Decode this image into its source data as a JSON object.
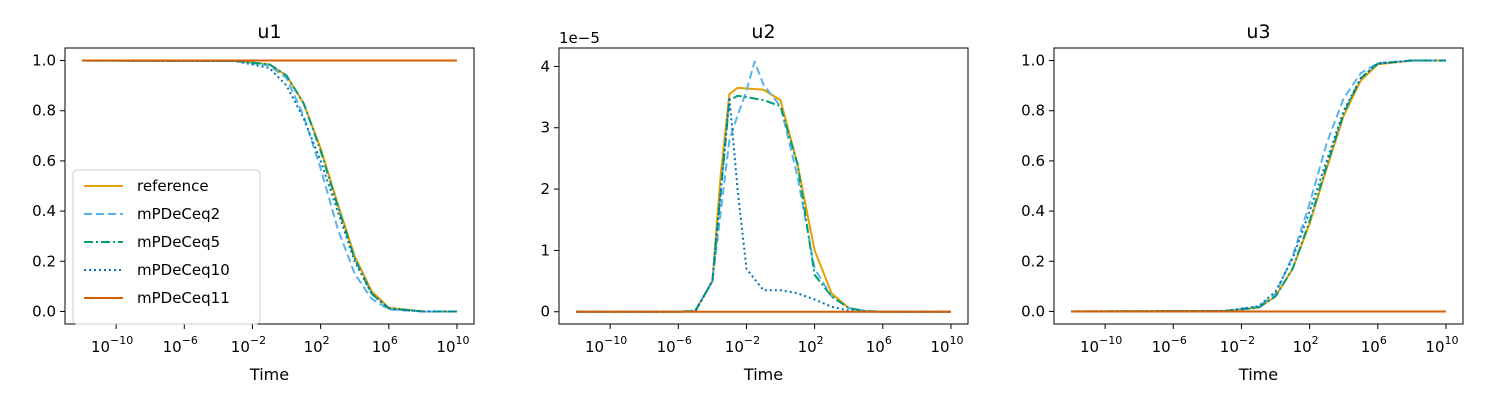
{
  "chart_data": [
    {
      "type": "line",
      "title": "u1",
      "xlabel": "Time",
      "ylabel": "",
      "xscale": "log",
      "xlim": [
        1e-13,
        100000000000.0
      ],
      "ylim": [
        -0.05,
        1.05
      ],
      "xticks": [
        1e-10,
        1e-06,
        0.01,
        100.0,
        1000000.0,
        10000000000.0
      ],
      "xtick_labels": [
        {
          "base": "10",
          "exp": "−10"
        },
        {
          "base": "10",
          "exp": "−6"
        },
        {
          "base": "10",
          "exp": "−2"
        },
        {
          "base": "10",
          "exp": "2"
        },
        {
          "base": "10",
          "exp": "6"
        },
        {
          "base": "10",
          "exp": "10"
        }
      ],
      "yticks": [
        0.0,
        0.2,
        0.4,
        0.6,
        0.8,
        1.0
      ],
      "ytick_labels": [
        "0.0",
        "0.2",
        "0.4",
        "0.6",
        "0.8",
        "1.0"
      ],
      "y_offset_label": "",
      "grid": false,
      "legend_position": "lower-left",
      "series": [
        {
          "name": "reference",
          "color": "#E69F00",
          "style": "solid",
          "x": [
            1e-12,
            0.001,
            0.1,
            1,
            10,
            100,
            1000,
            10000.0,
            100000.0,
            1000000.0,
            100000000.0,
            10000000000.0
          ],
          "y": [
            1.0,
            0.998,
            0.985,
            0.94,
            0.83,
            0.65,
            0.43,
            0.22,
            0.08,
            0.015,
            0.0,
            0.0
          ]
        },
        {
          "name": "mPDeCeq2",
          "color": "#56B4E9",
          "style": "dashed",
          "x": [
            1e-12,
            0.001,
            0.1,
            1,
            10,
            100,
            1000,
            10000.0,
            100000.0,
            1000000.0,
            100000000.0,
            10000000000.0
          ],
          "y": [
            1.0,
            0.998,
            0.98,
            0.93,
            0.78,
            0.57,
            0.33,
            0.15,
            0.05,
            0.008,
            0.0,
            0.0
          ]
        },
        {
          "name": "mPDeCeq5",
          "color": "#009E73",
          "style": "dashdot",
          "x": [
            1e-12,
            0.001,
            0.1,
            1,
            10,
            100,
            1000,
            10000.0,
            100000.0,
            1000000.0,
            100000000.0,
            10000000000.0
          ],
          "y": [
            1.0,
            0.998,
            0.985,
            0.94,
            0.83,
            0.64,
            0.42,
            0.21,
            0.07,
            0.012,
            0.0,
            0.0
          ]
        },
        {
          "name": "mPDeCeq10",
          "color": "#0072B2",
          "style": "dotted",
          "x": [
            1e-12,
            0.001,
            0.1,
            1,
            10,
            100,
            1000,
            10000.0,
            100000.0,
            1000000.0,
            100000000.0,
            10000000000.0
          ],
          "y": [
            1.0,
            0.998,
            0.97,
            0.9,
            0.77,
            0.6,
            0.4,
            0.2,
            0.07,
            0.012,
            0.0,
            0.0
          ]
        },
        {
          "name": "mPDeCeq11",
          "color": "#D55E00",
          "style": "solid",
          "x": [
            1e-12,
            10000000000.0
          ],
          "y": [
            1.0,
            1.0
          ]
        }
      ]
    },
    {
      "type": "line",
      "title": "u2",
      "xlabel": "Time",
      "ylabel": "",
      "xscale": "log",
      "xlim": [
        1e-13,
        100000000000.0
      ],
      "ylim": [
        -2e-06,
        4.3e-05
      ],
      "xticks": [
        1e-10,
        1e-06,
        0.01,
        100.0,
        1000000.0,
        10000000000.0
      ],
      "xtick_labels": [
        {
          "base": "10",
          "exp": "−10"
        },
        {
          "base": "10",
          "exp": "−6"
        },
        {
          "base": "10",
          "exp": "−2"
        },
        {
          "base": "10",
          "exp": "2"
        },
        {
          "base": "10",
          "exp": "6"
        },
        {
          "base": "10",
          "exp": "10"
        }
      ],
      "yticks": [
        0,
        1e-05,
        2e-05,
        3e-05,
        4e-05
      ],
      "ytick_labels": [
        "0",
        "1",
        "2",
        "3",
        "4"
      ],
      "y_offset_label": "1e−5",
      "grid": false,
      "series": [
        {
          "name": "reference",
          "color": "#E69F00",
          "style": "solid",
          "x": [
            1e-12,
            1e-06,
            1e-05,
            0.0001,
            0.0003,
            0.001,
            0.003,
            0.01,
            0.1,
            1,
            10,
            100,
            1000,
            10000.0,
            100000.0,
            1000000.0,
            10000000000.0
          ],
          "y": [
            0,
            0,
            1e-07,
            5e-06,
            2.2e-05,
            3.55e-05,
            3.65e-05,
            3.64e-05,
            3.62e-05,
            3.45e-05,
            2.4e-05,
            1e-05,
            3e-06,
            6e-07,
            1e-07,
            0,
            0
          ]
        },
        {
          "name": "mPDeCeq2",
          "color": "#56B4E9",
          "style": "dashed",
          "x": [
            1e-12,
            1e-06,
            1e-05,
            0.0001,
            0.001,
            0.003,
            0.01,
            0.03,
            0.1,
            1,
            10,
            100,
            1000,
            10000.0,
            100000.0,
            1000000.0,
            10000000000.0
          ],
          "y": [
            0,
            0,
            2e-07,
            5e-06,
            2.8e-05,
            3.2e-05,
            3.6e-05,
            4.08e-05,
            3.7e-05,
            3.35e-05,
            2.2e-05,
            7e-06,
            2.5e-06,
            6e-07,
            1e-07,
            0,
            0
          ]
        },
        {
          "name": "mPDeCeq5",
          "color": "#009E73",
          "style": "dashdot",
          "x": [
            1e-12,
            1e-06,
            1e-05,
            0.0001,
            0.001,
            0.003,
            0.01,
            0.1,
            1,
            10,
            100,
            1000,
            10000.0,
            100000.0,
            1000000.0,
            10000000000.0
          ],
          "y": [
            0,
            0,
            1e-07,
            5e-06,
            3.45e-05,
            3.52e-05,
            3.5e-05,
            3.45e-05,
            3.35e-05,
            2.4e-05,
            6e-06,
            2.5e-06,
            6e-07,
            1e-07,
            0,
            0
          ]
        },
        {
          "name": "mPDeCeq10",
          "color": "#0072B2",
          "style": "dotted",
          "x": [
            1e-12,
            1e-06,
            1e-05,
            0.0001,
            0.001,
            0.003,
            0.01,
            0.1,
            1,
            10,
            100,
            1000,
            10000.0,
            100000.0,
            1000000.0,
            10000000000.0
          ],
          "y": [
            0,
            0,
            1e-07,
            5e-06,
            3.5e-05,
            2e-05,
            7e-06,
            3.5e-06,
            3.5e-06,
            3e-06,
            2e-06,
            8e-07,
            2e-07,
            0,
            0,
            0
          ]
        },
        {
          "name": "mPDeCeq11",
          "color": "#D55E00",
          "style": "solid",
          "x": [
            1e-12,
            10000000000.0
          ],
          "y": [
            0,
            0
          ]
        }
      ]
    },
    {
      "type": "line",
      "title": "u3",
      "xlabel": "Time",
      "ylabel": "",
      "xscale": "log",
      "xlim": [
        1e-13,
        100000000000.0
      ],
      "ylim": [
        -0.05,
        1.05
      ],
      "xticks": [
        1e-10,
        1e-06,
        0.01,
        100.0,
        1000000.0,
        10000000000.0
      ],
      "xtick_labels": [
        {
          "base": "10",
          "exp": "−10"
        },
        {
          "base": "10",
          "exp": "−6"
        },
        {
          "base": "10",
          "exp": "−2"
        },
        {
          "base": "10",
          "exp": "2"
        },
        {
          "base": "10",
          "exp": "6"
        },
        {
          "base": "10",
          "exp": "10"
        }
      ],
      "yticks": [
        0.0,
        0.2,
        0.4,
        0.6,
        0.8,
        1.0
      ],
      "ytick_labels": [
        "0.0",
        "0.2",
        "0.4",
        "0.6",
        "0.8",
        "1.0"
      ],
      "y_offset_label": "",
      "grid": false,
      "series": [
        {
          "name": "reference",
          "color": "#E69F00",
          "style": "solid",
          "x": [
            1e-12,
            0.001,
            0.1,
            1,
            10,
            100,
            1000,
            10000.0,
            100000.0,
            1000000.0,
            100000000.0,
            10000000000.0
          ],
          "y": [
            0.0,
            0.002,
            0.015,
            0.06,
            0.17,
            0.35,
            0.57,
            0.78,
            0.92,
            0.985,
            1.0,
            1.0
          ]
        },
        {
          "name": "mPDeCeq2",
          "color": "#56B4E9",
          "style": "dashed",
          "x": [
            1e-12,
            0.001,
            0.1,
            1,
            10,
            100,
            1000,
            10000.0,
            100000.0,
            1000000.0,
            100000000.0,
            10000000000.0
          ],
          "y": [
            0.0,
            0.002,
            0.02,
            0.07,
            0.22,
            0.43,
            0.67,
            0.85,
            0.95,
            0.99,
            1.0,
            1.0
          ]
        },
        {
          "name": "mPDeCeq5",
          "color": "#009E73",
          "style": "dashdot",
          "x": [
            1e-12,
            0.001,
            0.1,
            1,
            10,
            100,
            1000,
            10000.0,
            100000.0,
            1000000.0,
            100000000.0,
            10000000000.0
          ],
          "y": [
            0.0,
            0.002,
            0.015,
            0.06,
            0.17,
            0.36,
            0.58,
            0.79,
            0.93,
            0.988,
            1.0,
            1.0
          ]
        },
        {
          "name": "mPDeCeq10",
          "color": "#0072B2",
          "style": "dotted",
          "x": [
            1e-12,
            0.001,
            0.1,
            1,
            10,
            100,
            1000,
            10000.0,
            100000.0,
            1000000.0,
            100000000.0,
            10000000000.0
          ],
          "y": [
            0.0,
            0.002,
            0.02,
            0.08,
            0.21,
            0.4,
            0.6,
            0.8,
            0.93,
            0.988,
            1.0,
            1.0
          ]
        },
        {
          "name": "mPDeCeq11",
          "color": "#D55E00",
          "style": "solid",
          "x": [
            1e-12,
            10000000000.0
          ],
          "y": [
            0.0,
            0.0
          ]
        }
      ]
    }
  ]
}
